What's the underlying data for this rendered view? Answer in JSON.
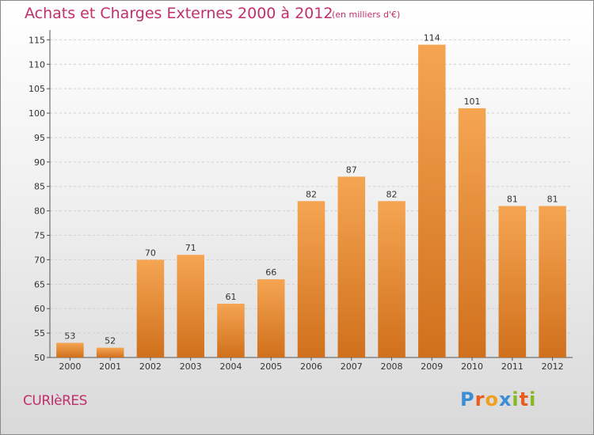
{
  "header": {
    "title": "Achats et Charges Externes 2000 à 2012",
    "subtitle": "(en milliers d'€)"
  },
  "commune": "CURIèRES",
  "logo": {
    "letters": [
      "P",
      "r",
      "o",
      "x",
      "i",
      "t",
      "i"
    ],
    "colors": [
      "#3a8fd4",
      "#e85c1c",
      "#f0a020",
      "#3a8fd4",
      "#88b820",
      "#e85c1c",
      "#88b820"
    ]
  },
  "chart_data": {
    "type": "bar",
    "title": "Achats et Charges Externes 2000 à 2012",
    "categories": [
      "2000",
      "2001",
      "2002",
      "2003",
      "2004",
      "2005",
      "2006",
      "2007",
      "2008",
      "2009",
      "2010",
      "2011",
      "2012"
    ],
    "values": [
      53,
      52,
      70,
      71,
      61,
      66,
      82,
      87,
      82,
      114,
      101,
      81,
      81
    ],
    "ylim": [
      50,
      117
    ],
    "yticks": [
      50,
      55,
      60,
      65,
      70,
      75,
      80,
      85,
      90,
      95,
      100,
      105,
      110,
      115
    ],
    "grid": true,
    "bar_color_top": "#f5a552",
    "bar_color_bottom": "#d0701c"
  }
}
